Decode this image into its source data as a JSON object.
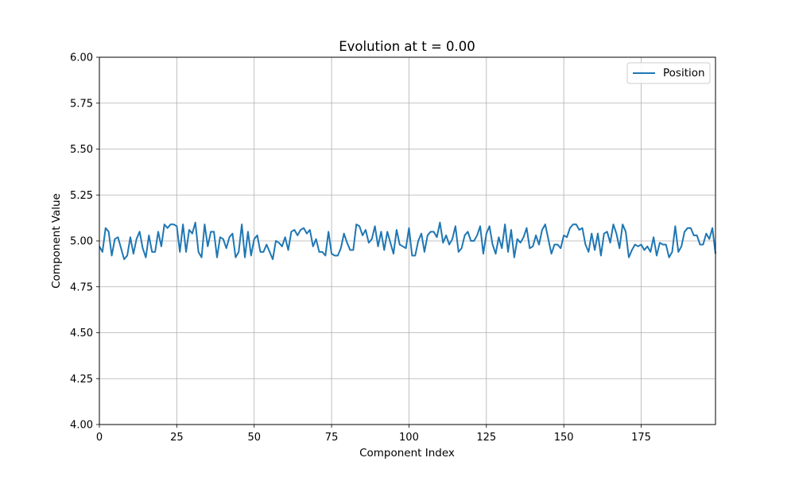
{
  "chart_data": {
    "type": "line",
    "title": "Evolution at t = 0.00",
    "xlabel": "Component Index",
    "ylabel": "Component Value",
    "xlim": [
      0,
      199
    ],
    "ylim": [
      4.0,
      6.0
    ],
    "xticks": [
      0,
      25,
      50,
      75,
      100,
      125,
      150,
      175
    ],
    "xtick_labels": [
      "0",
      "25",
      "50",
      "75",
      "100",
      "125",
      "150",
      "175"
    ],
    "yticks": [
      4.0,
      4.25,
      4.5,
      4.75,
      5.0,
      5.25,
      5.5,
      5.75,
      6.0
    ],
    "ytick_labels": [
      "4.00",
      "4.25",
      "4.50",
      "4.75",
      "5.00",
      "5.25",
      "5.50",
      "5.75",
      "6.00"
    ],
    "grid": true,
    "legend_position": "top-right",
    "series": [
      {
        "name": "Position",
        "color": "#1f77b4",
        "x_start": 0,
        "x_step": 1,
        "values": [
          4.97,
          4.94,
          5.07,
          5.05,
          4.92,
          5.01,
          5.02,
          4.96,
          4.9,
          4.92,
          5.02,
          4.93,
          5.01,
          5.05,
          4.96,
          4.91,
          5.03,
          4.94,
          4.94,
          5.05,
          4.97,
          5.09,
          5.07,
          5.09,
          5.09,
          5.08,
          4.94,
          5.09,
          4.94,
          5.06,
          5.04,
          5.1,
          4.94,
          4.91,
          5.09,
          4.97,
          5.05,
          5.05,
          4.91,
          5.02,
          5.01,
          4.96,
          5.02,
          5.04,
          4.91,
          4.94,
          5.09,
          4.91,
          5.05,
          4.92,
          5.01,
          5.03,
          4.94,
          4.94,
          4.98,
          4.94,
          4.9,
          5.0,
          4.99,
          4.97,
          5.02,
          4.95,
          5.05,
          5.06,
          5.03,
          5.06,
          5.07,
          5.04,
          5.06,
          4.97,
          5.01,
          4.94,
          4.94,
          4.92,
          5.05,
          4.93,
          4.92,
          4.92,
          4.96,
          5.04,
          4.99,
          4.95,
          4.95,
          5.09,
          5.08,
          5.03,
          5.06,
          4.99,
          5.01,
          5.08,
          4.97,
          5.05,
          4.95,
          5.05,
          4.99,
          4.93,
          5.06,
          4.98,
          4.97,
          4.96,
          5.07,
          4.92,
          4.92,
          5.0,
          5.04,
          4.94,
          5.03,
          5.05,
          5.05,
          5.02,
          5.1,
          4.99,
          5.03,
          4.98,
          5.01,
          5.08,
          4.94,
          4.96,
          5.03,
          5.05,
          5.0,
          5.0,
          5.03,
          5.08,
          4.93,
          5.04,
          5.08,
          4.98,
          4.93,
          5.02,
          4.96,
          5.09,
          4.94,
          5.06,
          4.91,
          5.01,
          4.99,
          5.02,
          5.07,
          4.96,
          4.97,
          5.03,
          4.98,
          5.06,
          5.09,
          5.01,
          4.93,
          4.98,
          4.98,
          4.96,
          5.03,
          5.02,
          5.07,
          5.09,
          5.09,
          5.06,
          5.07,
          4.98,
          4.94,
          5.04,
          4.95,
          5.04,
          4.92,
          5.04,
          5.05,
          4.99,
          5.09,
          5.04,
          4.96,
          5.09,
          5.05,
          4.91,
          4.95,
          4.98,
          4.97,
          4.98,
          4.95,
          4.97,
          4.94,
          5.02,
          4.92,
          4.99,
          4.98,
          4.98,
          4.91,
          4.94,
          5.08,
          4.94,
          4.97,
          5.05,
          5.07,
          5.07,
          5.03,
          5.03,
          4.98,
          4.98,
          5.04,
          5.01,
          5.07,
          4.93
        ]
      }
    ]
  }
}
